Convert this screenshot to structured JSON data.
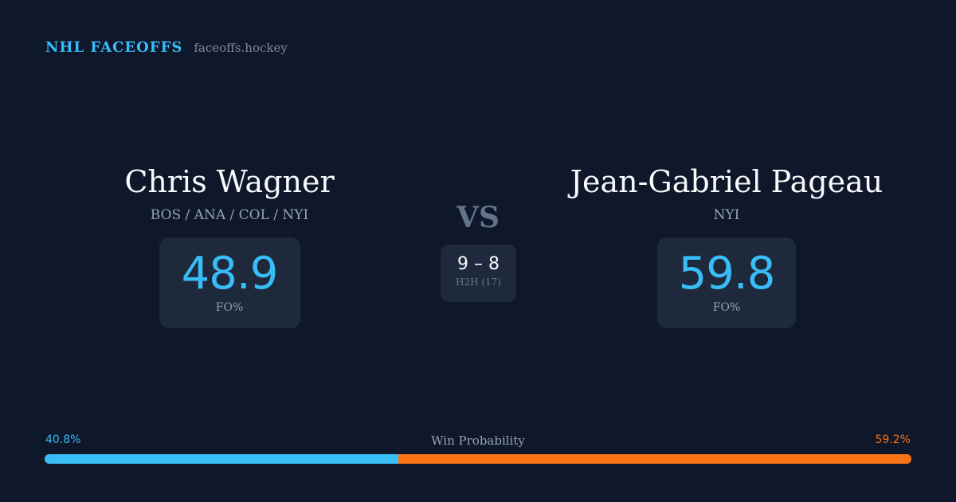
{
  "brand": {
    "name": "NHL FACEOFFS",
    "url": "faceoffs.hockey"
  },
  "player1": {
    "name": "Chris Wagner",
    "teams": "BOS / ANA / COL / NYI",
    "fo_pct": "48.9",
    "fo_label": "FO%"
  },
  "player2": {
    "name": "Jean-Gabriel Pageau",
    "teams": "NYI",
    "fo_pct": "59.8",
    "fo_label": "FO%"
  },
  "vs": "VS",
  "h2h": {
    "score": "9 – 8",
    "label": "H2H (17)"
  },
  "win_probability": {
    "title": "Win Probability",
    "left": "40.8%",
    "right": "59.2%",
    "left_value": 40.8,
    "right_value": 59.2
  },
  "colors": {
    "background": "#0f172a",
    "card": "#1e293b",
    "accent_blue": "#38bdf8",
    "accent_orange": "#f97316"
  }
}
